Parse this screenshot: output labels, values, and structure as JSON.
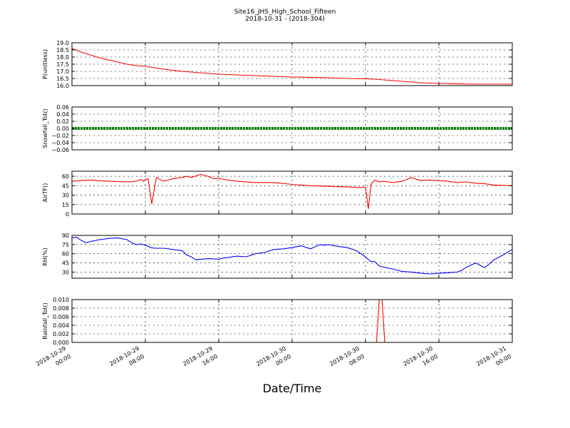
{
  "figure": {
    "title_line1": "Site16_JHS_High_School_Fifteen",
    "title_line2": "2018-10-31 - (2018-304)",
    "xlabel": "Date/Time",
    "x_ticks": [
      {
        "line1": "2018-10-29",
        "line2": "00:00",
        "hour": 0
      },
      {
        "line1": "2018-10-29",
        "line2": "08:00",
        "hour": 8
      },
      {
        "line1": "2018-10-29",
        "line2": "16:00",
        "hour": 16
      },
      {
        "line1": "2018-10-30",
        "line2": "00:00",
        "hour": 24
      },
      {
        "line1": "2018-10-30",
        "line2": "08:00",
        "hour": 32
      },
      {
        "line1": "2018-10-30",
        "line2": "16:00",
        "hour": 40
      },
      {
        "line1": "2018-10-31",
        "line2": "00:00",
        "hour": 48
      }
    ]
  },
  "chart_data": [
    {
      "type": "line",
      "ylabel": "P(unitless)",
      "color": "#ff0000",
      "ylim": [
        16.0,
        19.0
      ],
      "yticks": [
        "16.0",
        "16.5",
        "17.0",
        "17.5",
        "18.0",
        "18.5",
        "19.0"
      ],
      "ytick_values": [
        16.0,
        16.5,
        17.0,
        17.5,
        18.0,
        18.5,
        19.0
      ],
      "grid": true,
      "x": [
        0,
        1,
        2,
        3,
        4,
        5,
        6,
        7,
        8,
        9,
        10,
        12,
        14,
        16,
        18,
        20,
        22,
        24,
        26,
        28,
        30,
        32,
        33,
        34,
        36,
        38,
        40,
        42,
        44,
        48
      ],
      "y": [
        18.6,
        18.35,
        18.15,
        17.95,
        17.8,
        17.65,
        17.5,
        17.4,
        17.35,
        17.25,
        17.15,
        17.0,
        16.9,
        16.8,
        16.75,
        16.7,
        16.65,
        16.6,
        16.58,
        16.55,
        16.5,
        16.48,
        16.45,
        16.4,
        16.3,
        16.2,
        16.15,
        16.12,
        16.1,
        16.1
      ]
    },
    {
      "type": "line",
      "ylabel": "Snowfall_Tot()",
      "color": "#008000",
      "ylim": [
        -0.06,
        0.06
      ],
      "yticks": [
        "−0.06",
        "−0.04",
        "−0.02",
        "0.00",
        "0.02",
        "0.04",
        "0.06"
      ],
      "ytick_values": [
        -0.06,
        -0.04,
        -0.02,
        0.0,
        0.02,
        0.04,
        0.06
      ],
      "grid": true,
      "x": [
        0,
        48
      ],
      "y": [
        0,
        0
      ]
    },
    {
      "type": "line",
      "ylabel": "AirTF()",
      "color": "#ff0000",
      "ylim": [
        0,
        68
      ],
      "yticks": [
        "0",
        "15",
        "30",
        "45",
        "60"
      ],
      "ytick_values": [
        0,
        15,
        30,
        45,
        60
      ],
      "grid": true,
      "x": [
        0,
        2,
        4,
        6,
        7,
        7.5,
        7.8,
        8,
        8.3,
        8.7,
        9.2,
        10,
        11,
        12,
        12.5,
        13,
        14,
        14.8,
        15.5,
        16,
        16.5,
        17,
        18,
        20,
        22,
        24,
        26,
        28,
        30,
        31.5,
        32,
        32.3,
        32.6,
        33,
        33.5,
        34,
        35,
        36,
        37,
        38,
        39,
        40,
        41,
        42,
        43,
        44,
        45,
        46,
        48
      ],
      "y": [
        52,
        54,
        52,
        51,
        52,
        55,
        52,
        55,
        56,
        16,
        58,
        52,
        56,
        58,
        60,
        58,
        63,
        60,
        56,
        57,
        55,
        54,
        52,
        50,
        50,
        47,
        45,
        44,
        43,
        42,
        43,
        8,
        47,
        54,
        51,
        52,
        50,
        52,
        58,
        53,
        54,
        53,
        52,
        50,
        51,
        49,
        48,
        46,
        45
      ]
    },
    {
      "type": "line",
      "ylabel": "RH(%)",
      "color": "#0000ff",
      "ylim": [
        20,
        90
      ],
      "yticks": [
        "30",
        "45",
        "60",
        "75",
        "90"
      ],
      "ytick_values": [
        30,
        45,
        60,
        75,
        90
      ],
      "grid": true,
      "x": [
        0,
        0.5,
        1,
        1.5,
        2,
        3,
        4,
        5,
        6,
        6.5,
        7,
        7.5,
        8,
        8.3,
        8.6,
        9,
        10,
        11,
        11.5,
        12,
        12.5,
        13,
        13.5,
        14,
        15,
        16,
        16.5,
        17,
        18,
        19,
        20,
        21,
        22,
        23,
        24,
        25,
        26,
        27,
        27.5,
        28,
        29,
        30,
        31,
        32,
        32.5,
        33,
        33.5,
        34,
        35,
        36,
        37,
        38,
        39,
        40,
        41,
        42,
        42.5,
        43,
        44,
        45,
        46,
        47,
        48
      ],
      "y": [
        86,
        87,
        82,
        78,
        80,
        83,
        85,
        86,
        83,
        78,
        75,
        76,
        74,
        72,
        70,
        69,
        69,
        67,
        66,
        65,
        58,
        55,
        50,
        51,
        52,
        51,
        53,
        54,
        56,
        55,
        60,
        62,
        67,
        68,
        70,
        73,
        68,
        75,
        74,
        75,
        72,
        70,
        65,
        55,
        48,
        47,
        40,
        38,
        35,
        31,
        30,
        28,
        27,
        28,
        29,
        30,
        33,
        38,
        45,
        37,
        50,
        58,
        67
      ]
    },
    {
      "type": "line",
      "ylabel": "Rainfall_Tot()",
      "color": "#ff0000",
      "ylim": [
        0.0,
        0.01
      ],
      "yticks": [
        "0.000",
        "0.002",
        "0.004",
        "0.006",
        "0.008",
        "0.010"
      ],
      "ytick_values": [
        0.0,
        0.002,
        0.004,
        0.006,
        0.008,
        0.01
      ],
      "grid": true,
      "x": [
        0,
        33.2,
        33.5,
        33.8,
        34.1,
        48
      ],
      "y": [
        0,
        0,
        0.01,
        0.01,
        0,
        0
      ]
    }
  ]
}
